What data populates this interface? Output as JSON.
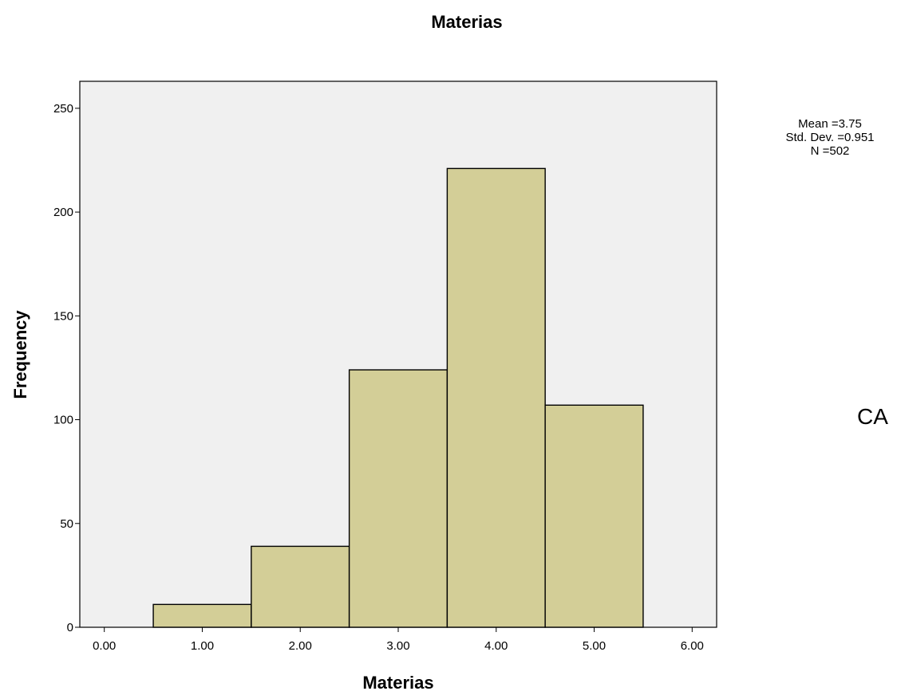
{
  "chart_data": {
    "type": "bar",
    "title": "Materias",
    "xlabel": "Materias",
    "ylabel": "Frequency",
    "bin_width": 1,
    "x": [
      1,
      2,
      3,
      4,
      5
    ],
    "values": [
      11,
      39,
      124,
      221,
      107
    ],
    "xlim": [
      -0.25,
      6.25
    ],
    "ylim": [
      0,
      263
    ],
    "xticks": [
      0,
      1,
      2,
      3,
      4,
      5,
      6
    ],
    "xtick_labels": [
      "0.00",
      "1.00",
      "2.00",
      "3.00",
      "4.00",
      "5.00",
      "6.00"
    ],
    "yticks": [
      0,
      50,
      100,
      150,
      200,
      250
    ],
    "ytick_labels": [
      "0",
      "50",
      "100",
      "150",
      "200",
      "250"
    ],
    "grid": false,
    "plot_background": "#f0f0f0",
    "bar_color": "#d3ce97",
    "bar_edge_color": "#000000",
    "stats": {
      "mean": "Mean =3.75",
      "std_dev": "Std. Dev. =0.951",
      "n": "N =502"
    },
    "side_label": "CA"
  }
}
